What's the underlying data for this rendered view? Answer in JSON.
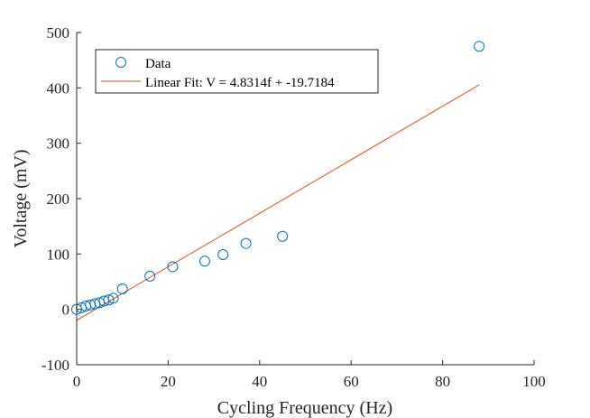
{
  "chart_data": {
    "type": "scatter",
    "xlabel": "Cycling Frequency (Hz)",
    "ylabel": "Voltage (mV)",
    "xlim": [
      0,
      100
    ],
    "ylim": [
      -100,
      500
    ],
    "xticks": [
      0,
      20,
      40,
      60,
      80,
      100
    ],
    "yticks": [
      -100,
      0,
      100,
      200,
      300,
      400,
      500
    ],
    "grid": false,
    "legend_position": "top-left",
    "series": [
      {
        "name": "Data",
        "kind": "scatter",
        "color": "#0072BD",
        "x": [
          0,
          1,
          2,
          3,
          4,
          5,
          6,
          7,
          8,
          10,
          16,
          21,
          28,
          32,
          37,
          45,
          88
        ],
        "y": [
          0,
          3,
          6,
          8,
          10,
          12,
          15,
          17,
          20,
          37,
          60,
          77,
          87,
          99,
          119,
          132,
          475
        ]
      },
      {
        "name": "Linear Fit: V = 4.8314f + -19.7184",
        "kind": "line",
        "color": "#D95319",
        "slope": 4.8314,
        "intercept": -19.7184,
        "x_range": [
          0,
          88
        ]
      }
    ]
  }
}
